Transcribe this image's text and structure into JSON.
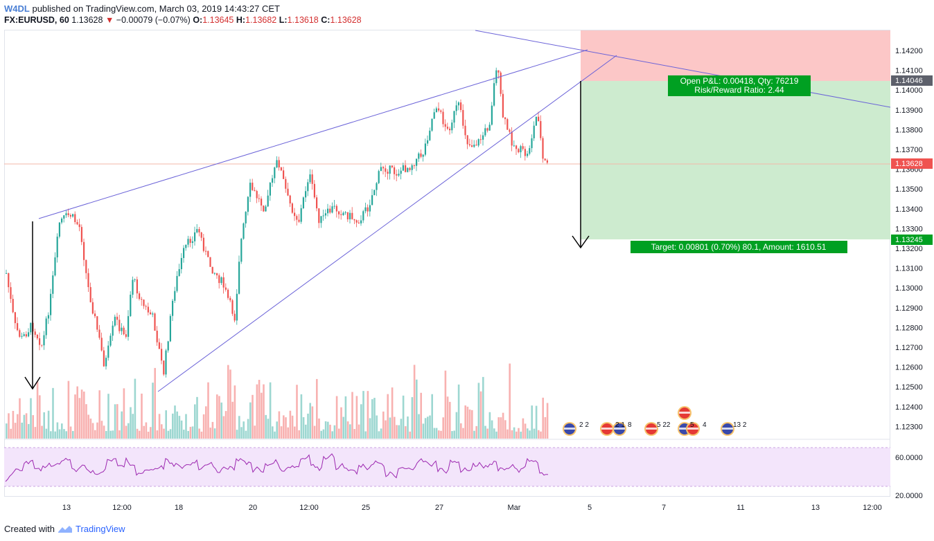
{
  "header": {
    "publisher": "W4DL",
    "published_text": "published on TradingView.com, March 03, 2019 14:43:27 CET",
    "symbol": "FX:EURUSD, 60",
    "last": "1.13628",
    "change": "−0.00079 (−0.07%)",
    "open_label": "O:",
    "open": "1.13645",
    "high_label": "H:",
    "high": "1.13682",
    "low_label": "L:",
    "low": "1.13618",
    "close_label": "C:",
    "close": "1.13628"
  },
  "price_axis": {
    "ticks": [
      "1.14200",
      "1.14100",
      "1.14000",
      "1.13900",
      "1.13800",
      "1.13700",
      "1.13600",
      "1.13500",
      "1.13400",
      "1.13300",
      "1.13200",
      "1.13100",
      "1.13000",
      "1.12900",
      "1.12800",
      "1.12700",
      "1.12600",
      "1.12500",
      "1.12400",
      "1.12300"
    ],
    "current_price": "1.13628",
    "stop_price": "1.14046",
    "target_price": "1.13245"
  },
  "rsi_axis": {
    "ticks": [
      "60.0000",
      "20.0000"
    ]
  },
  "time_axis": {
    "labels": [
      "13",
      "12:00",
      "18",
      "20",
      "12:00",
      "25",
      "27",
      "Mar",
      "5",
      "7",
      "11",
      "13",
      "12:00"
    ]
  },
  "position": {
    "open_pl": "Open P&L: 0.00418, Qty: 76219",
    "risk_reward": "Risk/Reward Ratio: 2.44",
    "target": "Target: 0.00801 (0.70%) 80.1, Amount: 1610.51"
  },
  "events": {
    "labels": [
      "2 2",
      "2 1",
      "8",
      "5 22",
      "5",
      "4",
      "13 2"
    ]
  },
  "footer": {
    "created_with": "Created with",
    "brand": "TradingView"
  },
  "colors": {
    "up": "#26a69a",
    "down": "#ef5350",
    "stop_zone": "#fcc7c7",
    "target_zone": "#cdebcf",
    "badge_green": "#00a022",
    "trendline": "#6a62d8",
    "rsi": "#9c27b0",
    "rsi_band": "#f3e5fb"
  }
}
